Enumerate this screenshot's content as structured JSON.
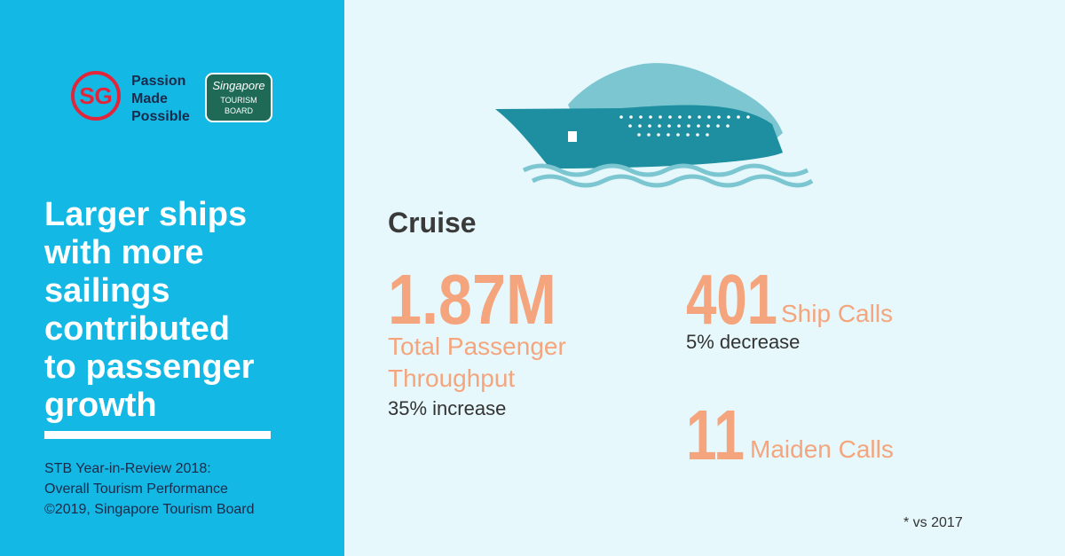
{
  "logo": {
    "sg": "SG",
    "tagline": [
      "Passion",
      "Made",
      "Possible"
    ],
    "board": [
      "Singapore",
      "TOURISM",
      "BOARD"
    ]
  },
  "headline": [
    "Larger ships",
    "with more",
    "sailings",
    "contributed",
    "to passenger",
    "growth"
  ],
  "source": [
    "STB Year-in-Review 2018:",
    "Overall Tourism Performance",
    "©2019, Singapore Tourism Board"
  ],
  "section": "Cruise",
  "stats": [
    {
      "value": "1.87M",
      "label": [
        "Total Passenger",
        "Throughput"
      ],
      "change": "35% increase"
    },
    {
      "value": "401",
      "label": [
        "Ship Calls"
      ],
      "change": "5% decrease"
    },
    {
      "value": "11",
      "label": [
        "Maiden Calls"
      ]
    }
  ],
  "footnote": "* vs 2017"
}
